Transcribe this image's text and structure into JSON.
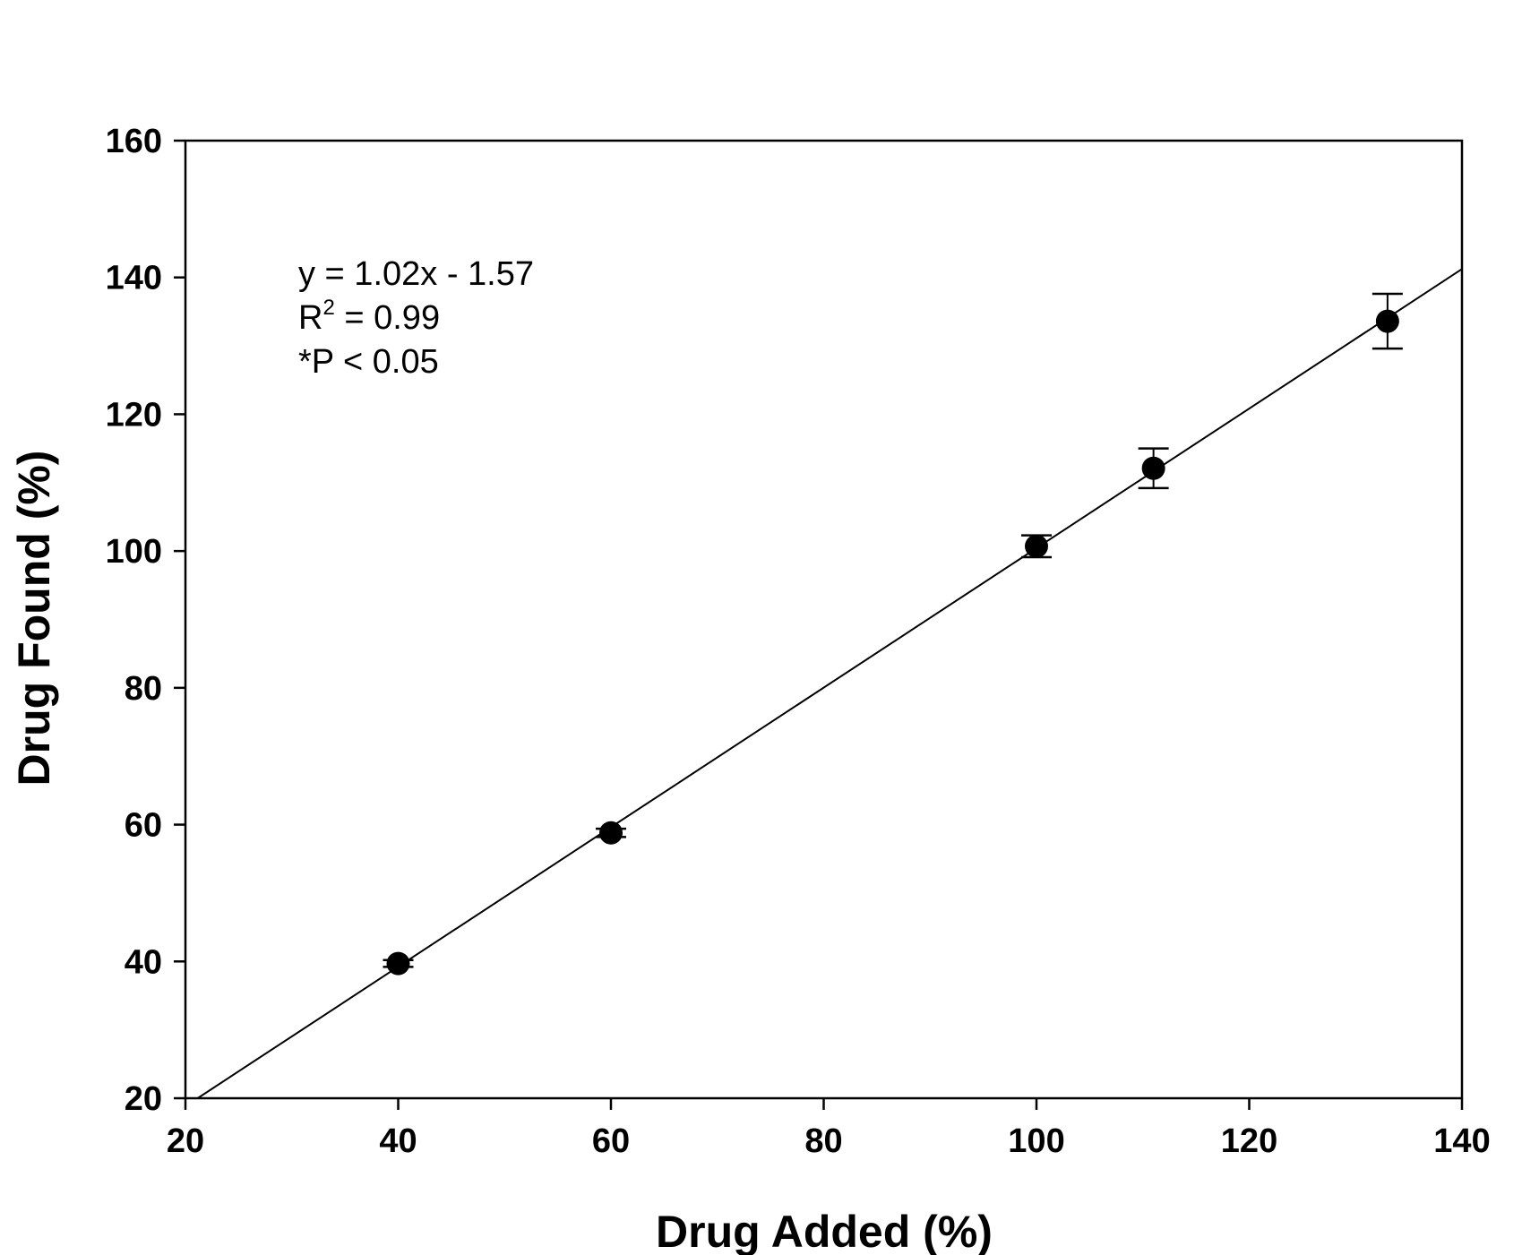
{
  "chart_data": {
    "type": "scatter",
    "xlabel": "Drug Added (%)",
    "ylabel": "Drug Found (%)",
    "xlim": [
      20,
      140
    ],
    "ylim": [
      20,
      160
    ],
    "xticks": [
      20,
      40,
      60,
      80,
      100,
      120,
      140
    ],
    "yticks": [
      20,
      40,
      60,
      80,
      100,
      120,
      140,
      160
    ],
    "grid": false,
    "series": [
      {
        "x": [
          40,
          60,
          100,
          111,
          133
        ],
        "y": [
          39.7,
          58.8,
          100.7,
          112.1,
          133.6
        ],
        "yerr": [
          0.5,
          0.6,
          1.6,
          2.9,
          4.0
        ]
      }
    ],
    "fit_line": {
      "slope": 1.02,
      "intercept": -1.57
    },
    "annotations": {
      "equation": "y = 1.02x - 1.57",
      "r2_prefix": "R",
      "r2_sup": "2",
      "r2_value": " = 0.99",
      "pvalue": "*P < 0.05"
    },
    "colors": {
      "marker": "#000000",
      "line": "#000000"
    }
  }
}
